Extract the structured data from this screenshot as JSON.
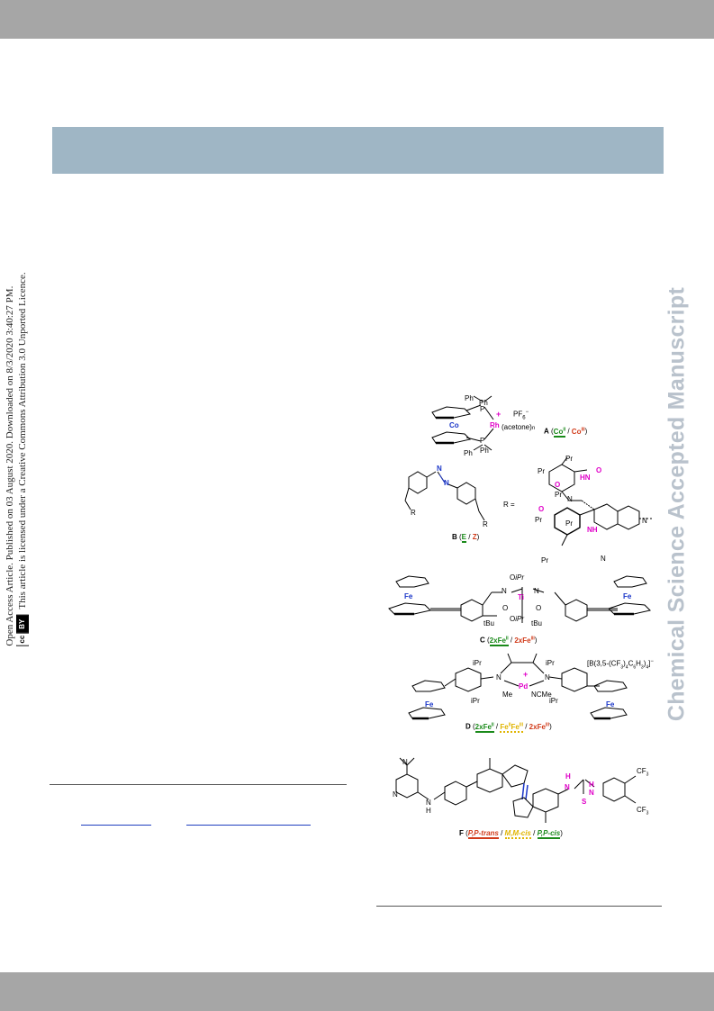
{
  "watermark": "Chemical Science Accepted Manuscript",
  "access_notice": {
    "line1": "Open Access Article. Published on 03 August 2020. Downloaded on 8/3/2020 3:40:27 PM.",
    "line2": "This article is licensed under a Creative Commons Attribution 3.0 Unported Licence.",
    "badge_cc": "cc",
    "badge_by": "BY"
  },
  "colors": {
    "header_bar": "#a6a6a6",
    "banner": "#9fb6c5",
    "watermark": "#b9c2cc",
    "state_green": "#1a8a1a",
    "state_red": "#d13b1a",
    "state_yellow": "#e0b400",
    "metal_blue": "#1a35c8",
    "metal_magenta": "#e000c8"
  },
  "figure": {
    "A": {
      "label": "A",
      "states": [
        "Co",
        "II",
        "Co",
        "III"
      ],
      "atoms": [
        "Co",
        "Rh",
        "Ph",
        "Ph",
        "Ph",
        "Ph",
        "P",
        "P",
        "PF",
        "6",
        "(acetone)",
        "n",
        "+"
      ]
    },
    "B": {
      "label": "B",
      "states": [
        "E",
        "Z"
      ],
      "atoms": [
        "N",
        "N",
        "R",
        "R",
        "R =",
        "Pr",
        "Pr",
        "Pr",
        "Pr",
        "Pr",
        "Pr",
        "O",
        "O",
        "O",
        "O",
        "NH",
        "HN",
        "N",
        "H",
        "H",
        "N",
        "N"
      ]
    },
    "C": {
      "label": "C",
      "states": [
        "2xFe",
        "II",
        "2xFe",
        "III"
      ],
      "atoms": [
        "Fe",
        "Fe",
        "Ti",
        "N",
        "N",
        "O",
        "O",
        "O",
        "O",
        "iPr",
        "iPr",
        "tBu",
        "tBu"
      ]
    },
    "D": {
      "label": "D",
      "states": [
        "2xFe",
        "II",
        "Fe",
        "II",
        "Fe",
        "III",
        "2xFe",
        "III"
      ],
      "anion": "[B(3,5-(CF",
      "anion_tail": ")",
      "anion_sub1": "3",
      "anion_mid": "C",
      "anion_sub2": "6",
      "anion_h": "H",
      "anion_sub3": "3",
      "anion_end": ")",
      "anion_sub4": "4",
      "anion_close": "]",
      "atoms": [
        "Fe",
        "Fe",
        "Pd",
        "N",
        "N",
        "Me",
        "NCMe",
        "iPr",
        "iPr",
        "iPr",
        "iPr",
        "+",
        "−"
      ]
    },
    "F": {
      "label": "F",
      "states": [
        "P,P-trans",
        "M,M-cis",
        "P,P-cis"
      ],
      "atoms": [
        "N",
        "N",
        "N",
        "H",
        "N",
        "N",
        "H",
        "H",
        "S",
        "CF",
        "3",
        "CF",
        "3"
      ]
    }
  }
}
